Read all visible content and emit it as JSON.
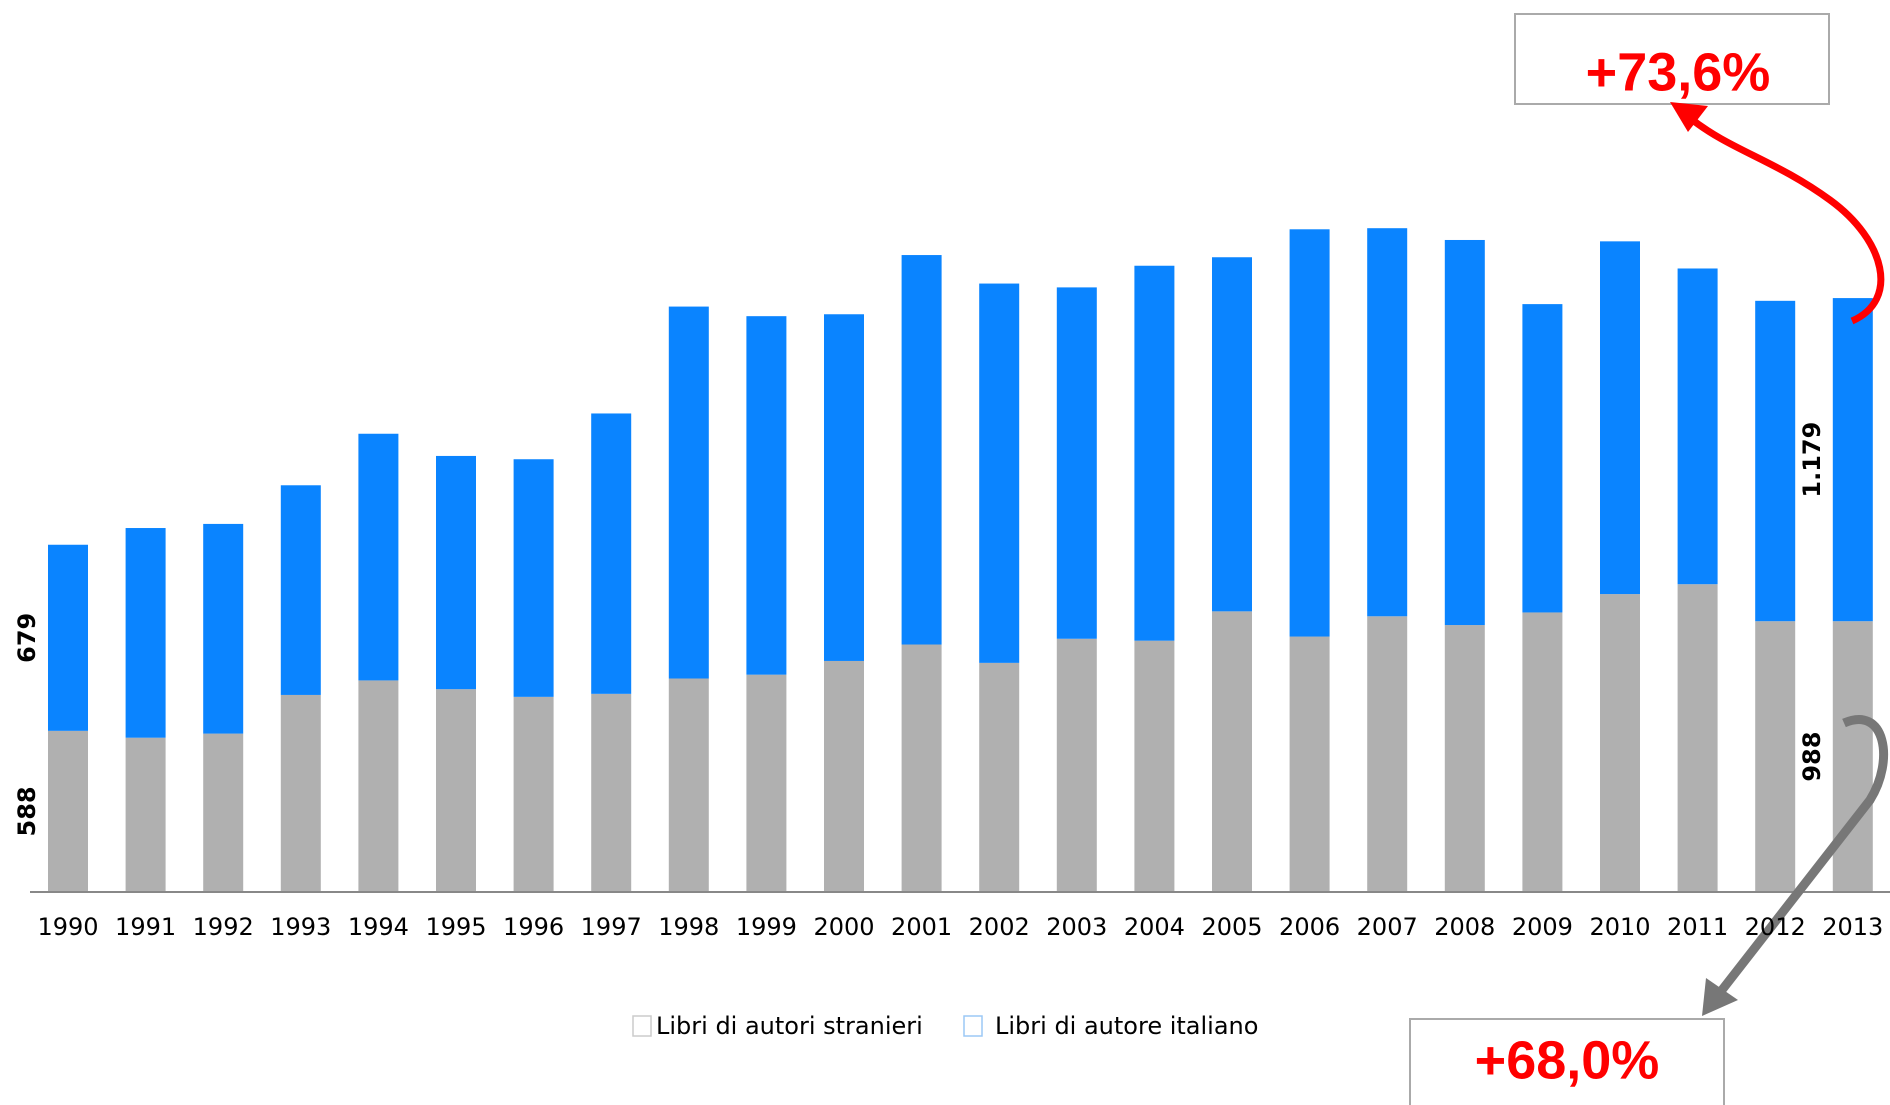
{
  "chart_data": {
    "type": "bar",
    "stacked": true,
    "categories": [
      "1990",
      "1991",
      "1992",
      "1993",
      "1994",
      "1995",
      "1996",
      "1997",
      "1998",
      "1999",
      "2000",
      "2001",
      "2002",
      "2003",
      "2004",
      "2005",
      "2006",
      "2007",
      "2008",
      "2009",
      "2010",
      "2011",
      "2012",
      "2013"
    ],
    "series": [
      {
        "name": "Libri di autori stranieri",
        "color": "#b0b0b0",
        "values": [
          588,
          563,
          578,
          719,
          772,
          740,
          712,
          723,
          779,
          793,
          843,
          903,
          836,
          924,
          917,
          1024,
          932,
          1006,
          974,
          1020,
          1087,
          1123,
          988,
          988
        ],
        "value_labels": [
          "588",
          null,
          null,
          null,
          null,
          null,
          null,
          null,
          null,
          null,
          null,
          null,
          null,
          null,
          null,
          null,
          null,
          null,
          null,
          null,
          null,
          null,
          null,
          "988"
        ]
      },
      {
        "name": "Libri di autore italiano",
        "color": "#0a84ff",
        "values": [
          679,
          765,
          765,
          765,
          900,
          851,
          867,
          1023,
          1357,
          1308,
          1265,
          1421,
          1384,
          1282,
          1368,
          1292,
          1486,
          1416,
          1405,
          1125,
          1287,
          1152,
          1169,
          1179
        ],
        "value_labels": [
          "679",
          null,
          null,
          null,
          null,
          null,
          null,
          null,
          null,
          null,
          null,
          null,
          null,
          null,
          null,
          null,
          null,
          null,
          null,
          null,
          null,
          null,
          null,
          "1.179"
        ]
      }
    ],
    "ylim": [
      0,
      2700
    ],
    "annotations": [
      "+73,6%",
      "+68,0%"
    ]
  }
}
